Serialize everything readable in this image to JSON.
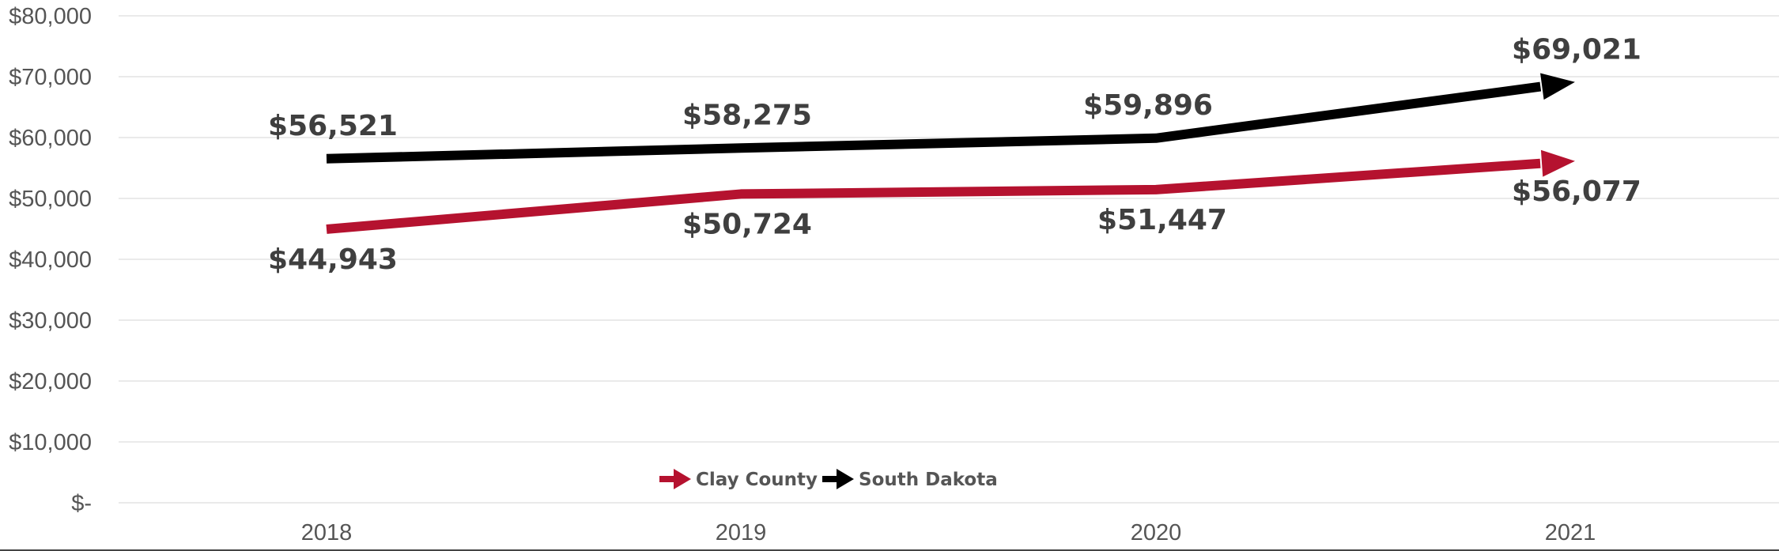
{
  "chart_data": {
    "type": "line",
    "categories": [
      "2018",
      "2019",
      "2020",
      "2021"
    ],
    "ylim": [
      0,
      80000
    ],
    "y_ticks": [
      {
        "value": 0,
        "label": "$-"
      },
      {
        "value": 10000,
        "label": "$10,000"
      },
      {
        "value": 20000,
        "label": "$20,000"
      },
      {
        "value": 30000,
        "label": "$30,000"
      },
      {
        "value": 40000,
        "label": "$40,000"
      },
      {
        "value": 50000,
        "label": "$50,000"
      },
      {
        "value": 60000,
        "label": "$60,000"
      },
      {
        "value": 70000,
        "label": "$70,000"
      },
      {
        "value": 80000,
        "label": "$80,000"
      }
    ],
    "grid": true,
    "legend_position": "bottom-center",
    "series": [
      {
        "name": "Clay County",
        "color": "#b5122f",
        "values": [
          44943,
          50724,
          51447,
          56077
        ],
        "labels": [
          "$44,943",
          "$50,724",
          "$51,447",
          "$56,077"
        ],
        "label_side": "below"
      },
      {
        "name": "South Dakota",
        "color": "#000000",
        "values": [
          56521,
          58275,
          59896,
          69021
        ],
        "labels": [
          "$56,521",
          "$58,275",
          "$59,896",
          "$69,021"
        ],
        "label_side": "above"
      }
    ]
  }
}
